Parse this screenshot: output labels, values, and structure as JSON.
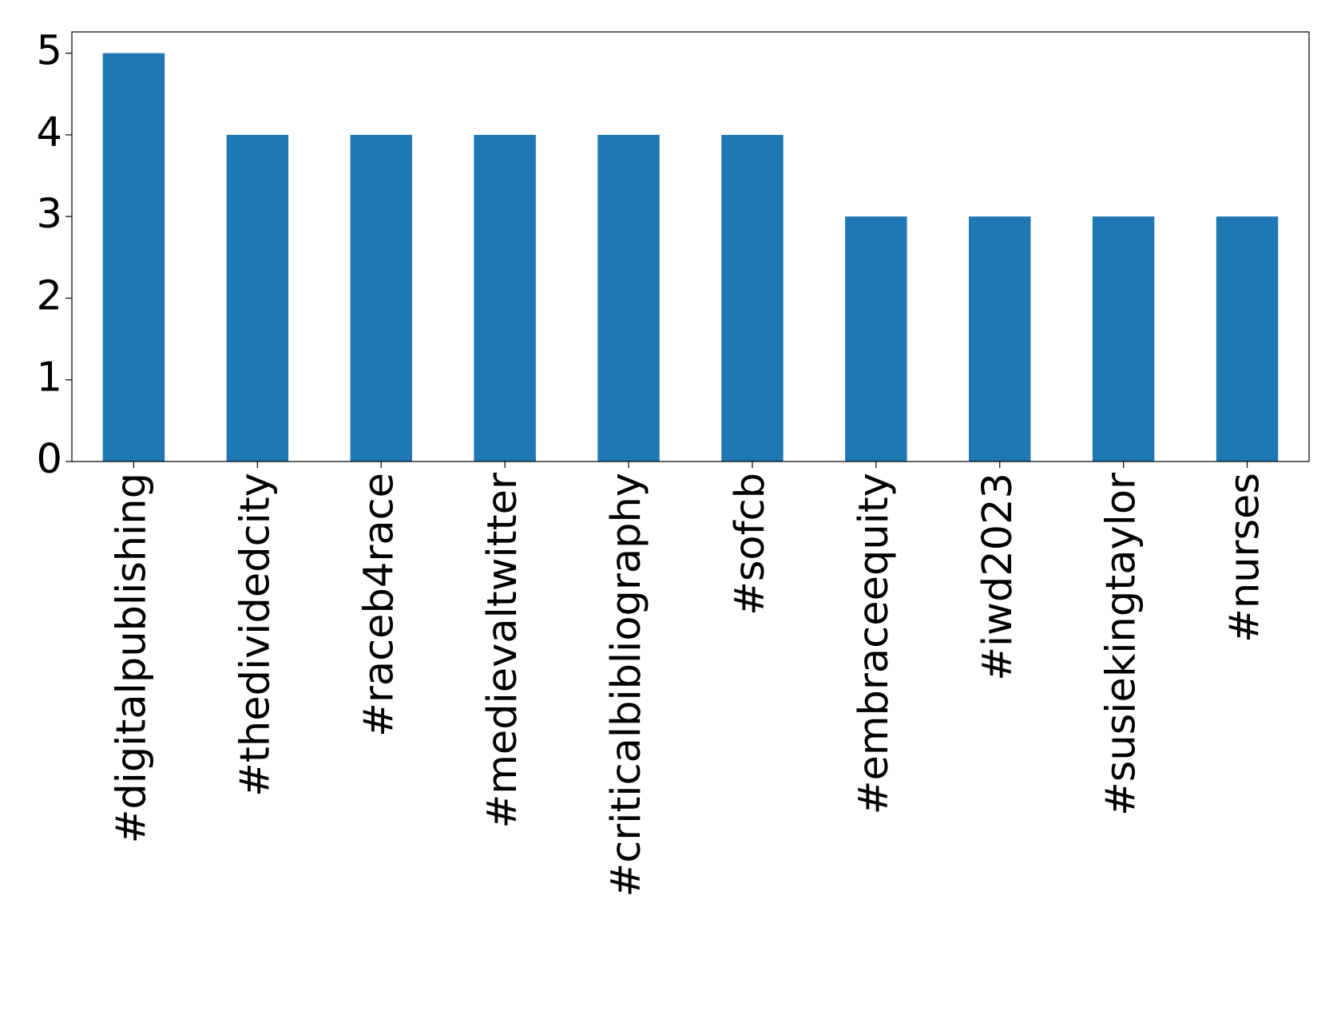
{
  "chart_data": {
    "type": "bar",
    "categories": [
      "#digitalpublishing",
      "#thedividedcity",
      "#raceb4race",
      "#medievaltwitter",
      "#criticalbibliography",
      "#sofcb",
      "#embraceequity",
      "#iwd2023",
      "#susiekingtaylor",
      "#nurses"
    ],
    "values": [
      5,
      4,
      4,
      4,
      4,
      4,
      3,
      3,
      3,
      3
    ],
    "color": "#1f77b4",
    "ylim": [
      0,
      5.26
    ],
    "yticks": [
      0,
      1,
      2,
      3,
      4,
      5
    ],
    "grid": false
  }
}
